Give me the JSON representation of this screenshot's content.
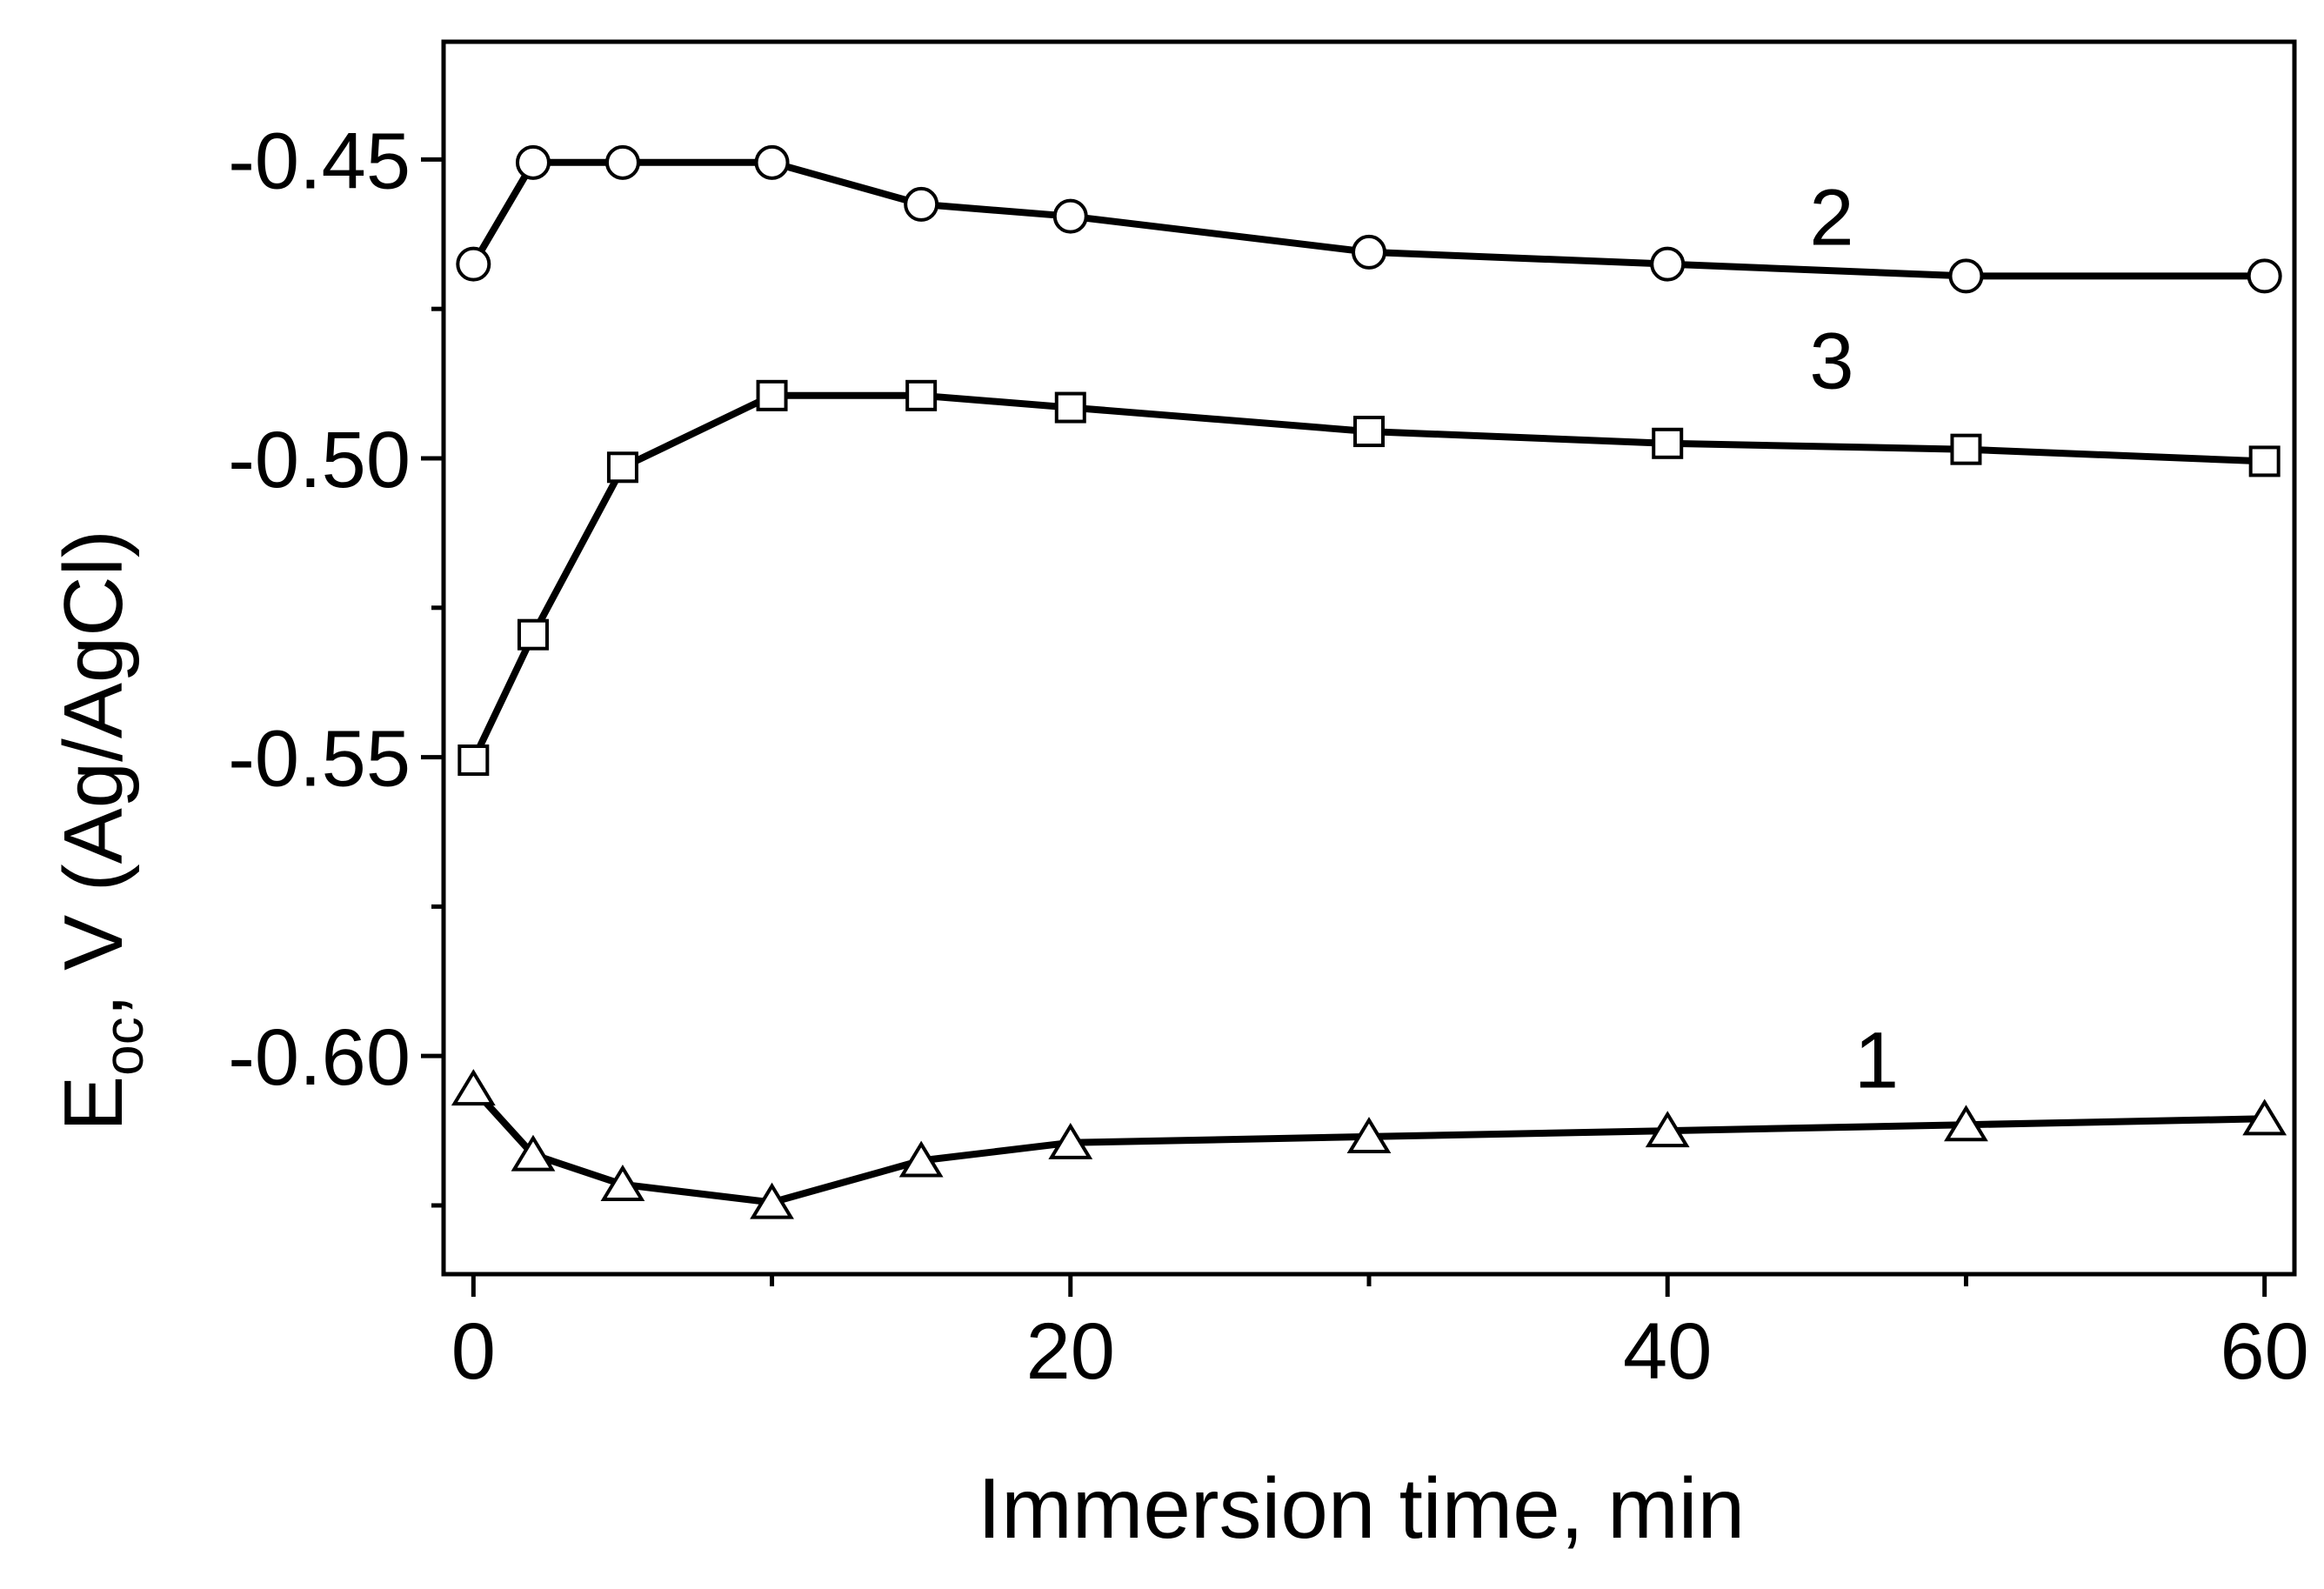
{
  "chart_data": {
    "type": "line",
    "title": "",
    "xlabel": "Immersion time, min",
    "ylabel_main": "E",
    "ylabel_sub": "oc",
    "ylabel_rest": ", V (Ag/AgCl)",
    "xlim": [
      -1,
      61
    ],
    "ylim": [
      -0.6365,
      -0.4303
    ],
    "xticks": [
      0,
      20,
      40,
      60
    ],
    "xtick_labels": [
      "0",
      "20",
      "40",
      "60"
    ],
    "xminor_ticks": [
      10,
      30,
      50
    ],
    "yticks": [
      -0.45,
      -0.5,
      -0.55,
      -0.6
    ],
    "ytick_labels": [
      "-0.45",
      "-0.50",
      "-0.55",
      "-0.60"
    ],
    "yminor_ticks": [
      -0.475,
      -0.525,
      -0.575,
      -0.625
    ],
    "grid": false,
    "legend": "none",
    "line_color": "#000000",
    "series": [
      {
        "name": "1",
        "marker": "triangle",
        "label_at": [
          47,
          -0.6005
        ],
        "x": [
          0,
          2,
          5,
          10,
          15,
          20,
          30,
          40,
          50,
          60
        ],
        "y": [
          -0.6055,
          -0.6165,
          -0.6215,
          -0.6245,
          -0.6175,
          -0.6145,
          -0.6135,
          -0.6125,
          -0.6115,
          -0.6105
        ]
      },
      {
        "name": "2",
        "marker": "circle",
        "label_at": [
          45.5,
          -0.4595
        ],
        "x": [
          0,
          2,
          5,
          10,
          15,
          20,
          30,
          40,
          50,
          60
        ],
        "y": [
          -0.4675,
          -0.4505,
          -0.4505,
          -0.4505,
          -0.4575,
          -0.4595,
          -0.4655,
          -0.4675,
          -0.4695,
          -0.4695
        ]
      },
      {
        "name": "3",
        "marker": "square",
        "label_at": [
          45.5,
          -0.4835
        ],
        "x": [
          0,
          2,
          5,
          10,
          15,
          20,
          30,
          40,
          50,
          60
        ],
        "y": [
          -0.5505,
          -0.5295,
          -0.5015,
          -0.4895,
          -0.4895,
          -0.4915,
          -0.4955,
          -0.4975,
          -0.4985,
          -0.5005
        ]
      }
    ]
  }
}
